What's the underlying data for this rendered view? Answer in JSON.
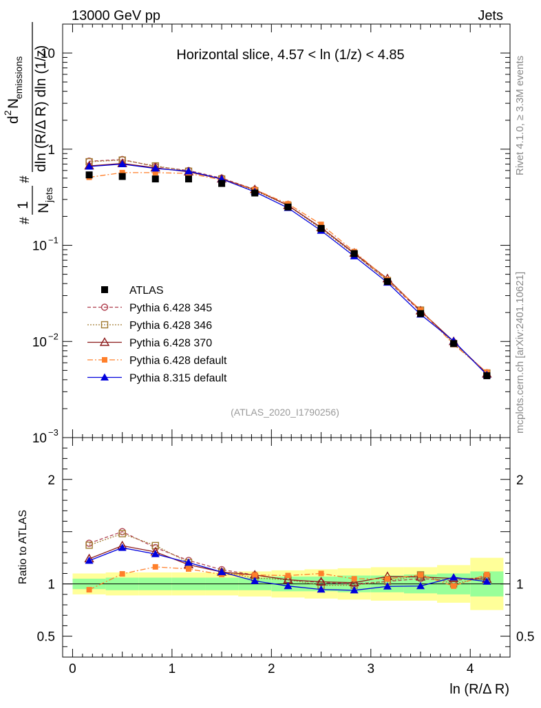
{
  "header": {
    "energy": "13000 GeV pp",
    "category": "Jets",
    "rivet": "Rivet 4.1.0, ≥ 3.3M events",
    "source": "mcplots.cern.ch [arXiv:2401.10621]"
  },
  "chart_data": {
    "type": "line",
    "title": "Horizontal slice, 4.57 < ln (1/z) < 4.85",
    "analysis": "(ATLAS_2020_I1790256)",
    "xlabel": "ln (R/Δ R)",
    "ylabel": "#1/N_jets #d²N_emissions / dln(R/ΔR) dln(1/z)",
    "ylabel_parts": {
      "hash1": "#",
      "one": "1",
      "n": "N",
      "jets": "jets",
      "hash2": "#",
      "numerator_d": "d",
      "numerator_sup": "2",
      "numerator_n": "N",
      "numerator_sub": "emissions",
      "denominator": "dln (R/Δ R) dln (1/z)"
    },
    "ratio_ylabel": "Ratio to ATLAS",
    "xlim": [
      -0.1,
      4.4
    ],
    "ylim": [
      0.001,
      20
    ],
    "ratio_ylim": [
      0.3,
      2.4
    ],
    "x_ticks": [
      "0",
      "1",
      "2",
      "3",
      "4"
    ],
    "y_ticks": [
      {
        "value": 10,
        "base": "10",
        "exp": ""
      },
      {
        "value": 1,
        "base": "1",
        "exp": ""
      },
      {
        "value": 0.1,
        "base": "10",
        "exp": "−1"
      },
      {
        "value": 0.01,
        "base": "10",
        "exp": "−2"
      },
      {
        "value": 0.001,
        "base": "10",
        "exp": "−3"
      }
    ],
    "ratio_ticks": [
      "0.5",
      "1",
      "2"
    ],
    "x": [
      0.167,
      0.5,
      0.833,
      1.167,
      1.5,
      1.833,
      2.167,
      2.5,
      2.833,
      3.167,
      3.5,
      3.833,
      4.167
    ],
    "data": {
      "name": "ATLAS",
      "values": [
        0.54,
        0.52,
        0.49,
        0.49,
        0.44,
        0.35,
        0.25,
        0.15,
        0.082,
        0.042,
        0.0195,
        0.0095,
        0.0044
      ],
      "stat_band": [
        0.05,
        0.06,
        0.06,
        0.06,
        0.06,
        0.06,
        0.07,
        0.07,
        0.08,
        0.08,
        0.09,
        0.1,
        0.12
      ],
      "total_band": [
        0.1,
        0.11,
        0.11,
        0.11,
        0.11,
        0.12,
        0.13,
        0.14,
        0.15,
        0.16,
        0.16,
        0.18,
        0.25
      ]
    },
    "series": [
      {
        "name": "Pythia 6.428 345",
        "color": "#b04050",
        "marker": "open-circle",
        "dash": "5,3",
        "values": [
          0.75,
          0.78,
          0.66,
          0.6,
          0.5,
          0.38,
          0.26,
          0.152,
          0.082,
          0.043,
          0.0205,
          0.0098,
          0.0047
        ]
      },
      {
        "name": "Pythia 6.428 346",
        "color": "#a07a30",
        "marker": "open-square",
        "dash": "2,2",
        "values": [
          0.74,
          0.77,
          0.67,
          0.59,
          0.49,
          0.37,
          0.26,
          0.148,
          0.081,
          0.043,
          0.0212,
          0.0095,
          0.0047
        ]
      },
      {
        "name": "Pythia 6.428 370",
        "color": "#8b1a1a",
        "marker": "open-triangle",
        "dash": "",
        "values": [
          0.67,
          0.71,
          0.64,
          0.58,
          0.49,
          0.38,
          0.26,
          0.153,
          0.083,
          0.045,
          0.0208,
          0.01,
          0.0046
        ]
      },
      {
        "name": "Pythia 6.428 default",
        "color": "#ff7f2a",
        "marker": "filled-square",
        "dash": "8,3,2,3",
        "values": [
          0.51,
          0.57,
          0.57,
          0.56,
          0.48,
          0.38,
          0.27,
          0.165,
          0.086,
          0.044,
          0.0212,
          0.0093,
          0.0048
        ]
      },
      {
        "name": "Pythia 8.315 default",
        "color": "#0000dd",
        "marker": "filled-triangle",
        "dash": "",
        "values": [
          0.66,
          0.7,
          0.63,
          0.59,
          0.49,
          0.36,
          0.245,
          0.142,
          0.077,
          0.041,
          0.0191,
          0.0101,
          0.0045
        ]
      }
    ]
  }
}
